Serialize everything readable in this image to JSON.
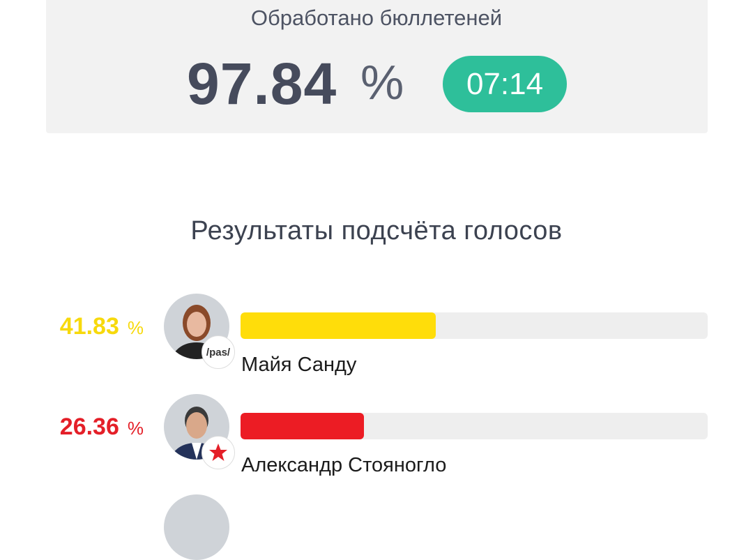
{
  "progress": {
    "title": "Обработано бюллетеней",
    "value": "97.84",
    "unit": "%",
    "time": "07:14",
    "accent": "#2ebf9a"
  },
  "results": {
    "heading": "Результаты подсчёта голосов",
    "candidates": [
      {
        "name": "Майя Санду",
        "percent": "41.83",
        "percent_value": 41.83,
        "unit": "%",
        "color": "#ffdd0a",
        "party_badge": "/pas/"
      },
      {
        "name": "Александр Стояногло",
        "percent": "26.36",
        "percent_value": 26.36,
        "unit": "%",
        "color": "#ec1c24",
        "party_badge": "star-icon"
      }
    ]
  }
}
